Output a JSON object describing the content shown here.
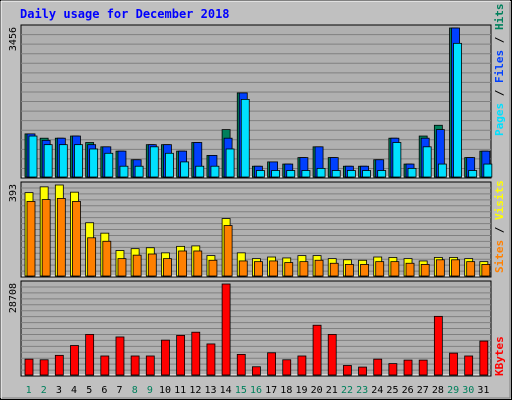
{
  "title": "Daily usage for December 2018",
  "colors": {
    "background": "#c0c0c0",
    "plot_background": "#b0b0b0",
    "hits": "#00805c",
    "files": "#0040ff",
    "pages": "#00e0ff",
    "visits": "#ffff00",
    "sites": "#ff8000",
    "kbytes": "#ff0000",
    "title": "#0000ff",
    "weekend_day": "#00805c"
  },
  "chart_data": [
    {
      "type": "bar",
      "panel": "hits-files-pages",
      "max_label": "3456",
      "ylim": [
        0,
        3456
      ],
      "grid": true,
      "legend_label": {
        "pages": "Pages",
        "sep1": " / ",
        "files": "Files",
        "sep2": " / ",
        "hits": "Hits"
      },
      "categories": [
        "1",
        "2",
        "3",
        "4",
        "5",
        "6",
        "7",
        "8",
        "9",
        "10",
        "11",
        "12",
        "13",
        "14",
        "15",
        "16",
        "17",
        "18",
        "19",
        "20",
        "21",
        "22",
        "23",
        "24",
        "25",
        "26",
        "27",
        "28",
        "29",
        "30",
        "31"
      ],
      "series": [
        {
          "name": "Hits",
          "values": [
            1000,
            900,
            900,
            950,
            800,
            700,
            600,
            400,
            750,
            750,
            600,
            800,
            500,
            1100,
            1950,
            250,
            350,
            300,
            450,
            700,
            450,
            250,
            250,
            400,
            900,
            300,
            950,
            1200,
            3456,
            450,
            600
          ]
        },
        {
          "name": "Files",
          "values": [
            1000,
            850,
            900,
            950,
            750,
            700,
            600,
            400,
            750,
            750,
            600,
            800,
            500,
            900,
            1950,
            250,
            350,
            300,
            450,
            700,
            450,
            250,
            250,
            400,
            900,
            300,
            900,
            1100,
            3456,
            450,
            600
          ]
        },
        {
          "name": "Pages",
          "values": [
            950,
            750,
            750,
            750,
            650,
            550,
            250,
            250,
            700,
            550,
            350,
            250,
            250,
            650,
            1800,
            150,
            150,
            150,
            150,
            200,
            150,
            150,
            150,
            150,
            800,
            200,
            700,
            300,
            3100,
            150,
            300
          ]
        }
      ]
    },
    {
      "type": "bar",
      "panel": "visits-sites",
      "max_label": "393",
      "ylim": [
        0,
        393
      ],
      "grid": true,
      "legend_label": {
        "sites": "Sites",
        "sep": " / ",
        "visits": "Visits"
      },
      "categories": [
        "1",
        "2",
        "3",
        "4",
        "5",
        "6",
        "7",
        "8",
        "9",
        "10",
        "11",
        "12",
        "13",
        "14",
        "15",
        "16",
        "17",
        "18",
        "19",
        "20",
        "21",
        "22",
        "23",
        "24",
        "25",
        "26",
        "27",
        "28",
        "29",
        "30",
        "31"
      ],
      "series": [
        {
          "name": "Visits",
          "values": [
            360,
            385,
            393,
            362,
            230,
            185,
            110,
            118,
            122,
            100,
            128,
            130,
            88,
            248,
            100,
            75,
            82,
            78,
            88,
            88,
            75,
            70,
            68,
            82,
            80,
            75,
            65,
            80,
            80,
            75,
            62
          ]
        },
        {
          "name": "Sites",
          "values": [
            322,
            330,
            335,
            322,
            165,
            150,
            75,
            90,
            95,
            75,
            108,
            108,
            68,
            218,
            65,
            62,
            65,
            58,
            62,
            68,
            55,
            50,
            50,
            62,
            62,
            55,
            50,
            70,
            70,
            62,
            50
          ]
        }
      ]
    },
    {
      "type": "bar",
      "panel": "kbytes",
      "max_label": "28708",
      "ylim": [
        0,
        28708
      ],
      "grid": true,
      "legend_label": {
        "kbytes": "KBytes"
      },
      "categories": [
        "1",
        "2",
        "3",
        "4",
        "5",
        "6",
        "7",
        "8",
        "9",
        "10",
        "11",
        "12",
        "13",
        "14",
        "15",
        "16",
        "17",
        "18",
        "19",
        "20",
        "21",
        "22",
        "23",
        "24",
        "25",
        "26",
        "27",
        "28",
        "29",
        "30",
        "31"
      ],
      "series": [
        {
          "name": "KBytes",
          "values": [
            5000,
            4800,
            6200,
            9300,
            12800,
            6000,
            12000,
            6000,
            6000,
            11000,
            12500,
            13500,
            9800,
            28708,
            6500,
            2600,
            7000,
            4800,
            6000,
            15700,
            12800,
            3000,
            2500,
            5000,
            3600,
            4700,
            4700,
            18500,
            6900,
            6000,
            10700
          ]
        }
      ]
    }
  ],
  "x_labels": [
    "1",
    "2",
    "3",
    "4",
    "5",
    "6",
    "7",
    "8",
    "9",
    "10",
    "11",
    "12",
    "13",
    "14",
    "15",
    "16",
    "17",
    "18",
    "19",
    "20",
    "21",
    "22",
    "23",
    "24",
    "25",
    "26",
    "27",
    "28",
    "29",
    "30",
    "31"
  ],
  "weekend_days": [
    "1",
    "2",
    "8",
    "9",
    "15",
    "16",
    "22",
    "23",
    "29",
    "30"
  ]
}
